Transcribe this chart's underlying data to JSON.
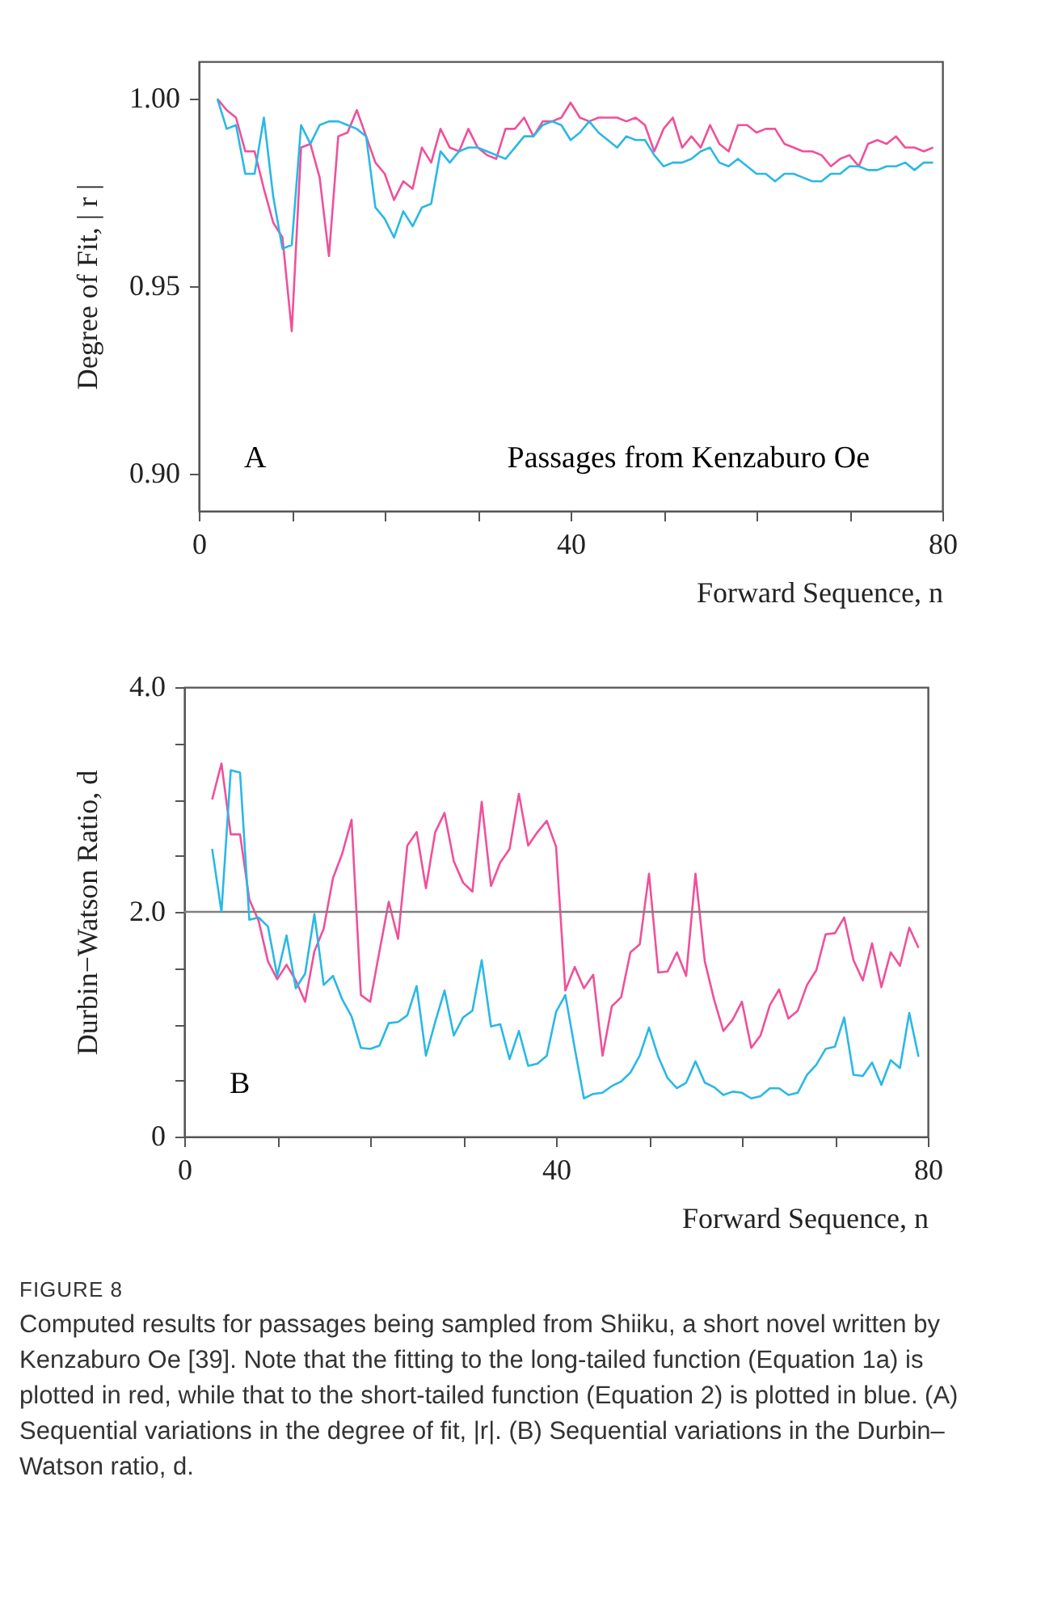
{
  "chart_data": [
    {
      "type": "line",
      "x": [
        2,
        3,
        4,
        5,
        6,
        7,
        8,
        9,
        10,
        11,
        12,
        13,
        14,
        15,
        16,
        17,
        18,
        19,
        20,
        21,
        22,
        23,
        24,
        25,
        26,
        27,
        28,
        29,
        30,
        31,
        32,
        33,
        34,
        35,
        36,
        37,
        38,
        39,
        40,
        41,
        42,
        43,
        44,
        45,
        46,
        47,
        48,
        49,
        50,
        51,
        52,
        53,
        54,
        55,
        56,
        57,
        58,
        59,
        60,
        61,
        62,
        63,
        64,
        65,
        66,
        67,
        68,
        69,
        70,
        71,
        72,
        73,
        74,
        75,
        76,
        77,
        78,
        79
      ],
      "series": [
        {
          "color": "#f0509a",
          "values": [
            1.0,
            0.997,
            0.995,
            0.986,
            0.986,
            0.976,
            0.967,
            0.963,
            0.938,
            0.987,
            0.988,
            0.979,
            0.958,
            0.99,
            0.991,
            0.997,
            0.99,
            0.983,
            0.98,
            0.973,
            0.978,
            0.976,
            0.987,
            0.983,
            0.992,
            0.987,
            0.986,
            0.992,
            0.987,
            0.985,
            0.984,
            0.992,
            0.992,
            0.995,
            0.99,
            0.994,
            0.994,
            0.995,
            0.999,
            0.995,
            0.994,
            0.995,
            0.995,
            0.995,
            0.994,
            0.995,
            0.993,
            0.986,
            0.992,
            0.995,
            0.987,
            0.99,
            0.987,
            0.993,
            0.988,
            0.986,
            0.993,
            0.993,
            0.991,
            0.992,
            0.992,
            0.988,
            0.987,
            0.986,
            0.986,
            0.985,
            0.982,
            0.984,
            0.985,
            0.982,
            0.988,
            0.989,
            0.988,
            0.99,
            0.987,
            0.987,
            0.986,
            0.987
          ]
        },
        {
          "color": "#2ab8e6",
          "values": [
            1.0,
            0.992,
            0.993,
            0.98,
            0.98,
            0.995,
            0.974,
            0.96,
            0.961,
            0.993,
            0.988,
            0.993,
            0.994,
            0.994,
            0.993,
            0.992,
            0.99,
            0.971,
            0.968,
            0.963,
            0.97,
            0.966,
            0.971,
            0.972,
            0.986,
            0.983,
            0.986,
            0.987,
            0.987,
            0.986,
            0.985,
            0.984,
            0.987,
            0.99,
            0.99,
            0.993,
            0.994,
            0.993,
            0.989,
            0.991,
            0.994,
            0.991,
            0.989,
            0.987,
            0.99,
            0.989,
            0.989,
            0.985,
            0.982,
            0.983,
            0.983,
            0.984,
            0.986,
            0.987,
            0.983,
            0.982,
            0.984,
            0.982,
            0.98,
            0.98,
            0.978,
            0.98,
            0.98,
            0.979,
            0.978,
            0.978,
            0.98,
            0.98,
            0.982,
            0.982,
            0.981,
            0.981,
            0.982,
            0.982,
            0.983,
            0.981,
            0.983,
            0.983
          ]
        }
      ],
      "xlim": [
        0,
        80
      ],
      "ylim": [
        0.89,
        1.01
      ],
      "xticks": [
        0,
        {
          "value": 10,
          "label": null
        },
        {
          "value": 20,
          "label": null
        },
        {
          "value": 30,
          "label": null
        },
        40,
        {
          "value": 50,
          "label": null
        },
        {
          "value": 60,
          "label": null
        },
        {
          "value": 70,
          "label": null
        },
        80
      ],
      "yticks": [
        {
          "value": 0.9,
          "label": "0.90"
        },
        {
          "value": 0.95,
          "label": "0.95"
        },
        {
          "value": 1,
          "label": "1.00"
        }
      ],
      "xlabel": "Forward Sequence, n",
      "ylabel": "Degree of Fit, | r |",
      "annotations": [
        "A",
        "Passages from Kenzaburo Oe"
      ]
    },
    {
      "type": "line",
      "x": [
        3,
        4,
        5,
        6,
        7,
        8,
        9,
        10,
        11,
        12,
        13,
        14,
        15,
        16,
        17,
        18,
        19,
        20,
        21,
        22,
        23,
        24,
        25,
        26,
        27,
        28,
        29,
        30,
        31,
        32,
        33,
        34,
        35,
        36,
        37,
        38,
        39,
        40,
        41,
        42,
        43,
        44,
        45,
        46,
        47,
        48,
        49,
        50,
        51,
        52,
        53,
        54,
        55,
        56,
        57,
        58,
        59,
        60,
        61,
        62,
        63,
        64,
        65,
        66,
        67,
        68,
        69,
        70,
        71,
        72,
        73,
        74,
        75,
        76,
        77,
        78,
        79
      ],
      "series": [
        {
          "color": "#f0509a",
          "values": [
            3.0,
            3.32,
            2.69,
            2.69,
            2.11,
            1.92,
            1.56,
            1.4,
            1.53,
            1.39,
            1.2,
            1.65,
            1.85,
            2.3,
            2.52,
            2.82,
            1.26,
            1.2,
            1.65,
            2.09,
            1.76,
            2.59,
            2.71,
            2.21,
            2.71,
            2.88,
            2.45,
            2.26,
            2.18,
            2.98,
            2.23,
            2.44,
            2.56,
            3.05,
            2.59,
            2.71,
            2.81,
            2.58,
            1.3,
            1.51,
            1.32,
            1.44,
            0.72,
            1.16,
            1.24,
            1.64,
            1.71,
            2.34,
            1.46,
            1.47,
            1.64,
            1.43,
            2.34,
            1.56,
            1.22,
            0.94,
            1.04,
            1.2,
            0.79,
            0.9,
            1.17,
            1.31,
            1.05,
            1.12,
            1.35,
            1.48,
            1.8,
            1.81,
            1.95,
            1.57,
            1.39,
            1.72,
            1.33,
            1.64,
            1.52,
            1.86,
            1.68
          ]
        },
        {
          "color": "#2ab8e6",
          "values": [
            2.56,
            2.0,
            3.26,
            3.24,
            1.93,
            1.95,
            1.87,
            1.43,
            1.79,
            1.32,
            1.45,
            1.98,
            1.35,
            1.43,
            1.22,
            1.07,
            0.79,
            0.78,
            0.81,
            1.01,
            1.02,
            1.08,
            1.34,
            0.72,
            1.02,
            1.3,
            0.9,
            1.06,
            1.12,
            1.57,
            0.98,
            1.0,
            0.69,
            0.94,
            0.63,
            0.65,
            0.72,
            1.11,
            1.26,
            0.79,
            0.34,
            0.38,
            0.39,
            0.45,
            0.49,
            0.57,
            0.72,
            0.97,
            0.71,
            0.52,
            0.43,
            0.48,
            0.67,
            0.48,
            0.44,
            0.37,
            0.4,
            0.39,
            0.34,
            0.36,
            0.43,
            0.43,
            0.37,
            0.39,
            0.55,
            0.64,
            0.78,
            0.8,
            1.06,
            0.55,
            0.54,
            0.66,
            0.46,
            0.68,
            0.61,
            1.1,
            0.71
          ]
        }
      ],
      "xlim": [
        0,
        80
      ],
      "ylim": [
        0,
        4
      ],
      "xticks": [
        0,
        {
          "value": 10,
          "label": null
        },
        {
          "value": 20,
          "label": null
        },
        {
          "value": 30,
          "label": null
        },
        40,
        {
          "value": 50,
          "label": null
        },
        {
          "value": 60,
          "label": null
        },
        {
          "value": 70,
          "label": null
        },
        80
      ],
      "yticks": [
        {
          "value": 0,
          "label": "0"
        },
        {
          "value": 0.5,
          "label": null
        },
        {
          "value": 1,
          "label": null
        },
        {
          "value": 1.5,
          "label": null
        },
        {
          "value": 2,
          "label": "2.0"
        },
        {
          "value": 2.5,
          "label": null
        },
        {
          "value": 3,
          "label": null
        },
        {
          "value": 3.5,
          "label": null
        },
        {
          "value": 4,
          "label": "4.0"
        }
      ],
      "xlabel": "Forward Sequence, n",
      "ylabel": "Durbin−Watson Ratio, d",
      "ref_lines": [
        {
          "axis": "y",
          "value": 2,
          "color": "#808080"
        }
      ],
      "annotations": [
        "B",
        "FIGURE 8",
        "Computed results for passages being sampled from Shiiku, a short novel written by Kenzaburo Oe [39]. Note that the fitting to the long-tailed function (Equation 1a) is plotted in red, while that to the short-tailed function (Equation 2) is plotted in blue. (A) Sequential variations in the degree of fit, |r|. (B) Sequential variations in the Durbin–Watson ratio, d."
      ]
    }
  ]
}
